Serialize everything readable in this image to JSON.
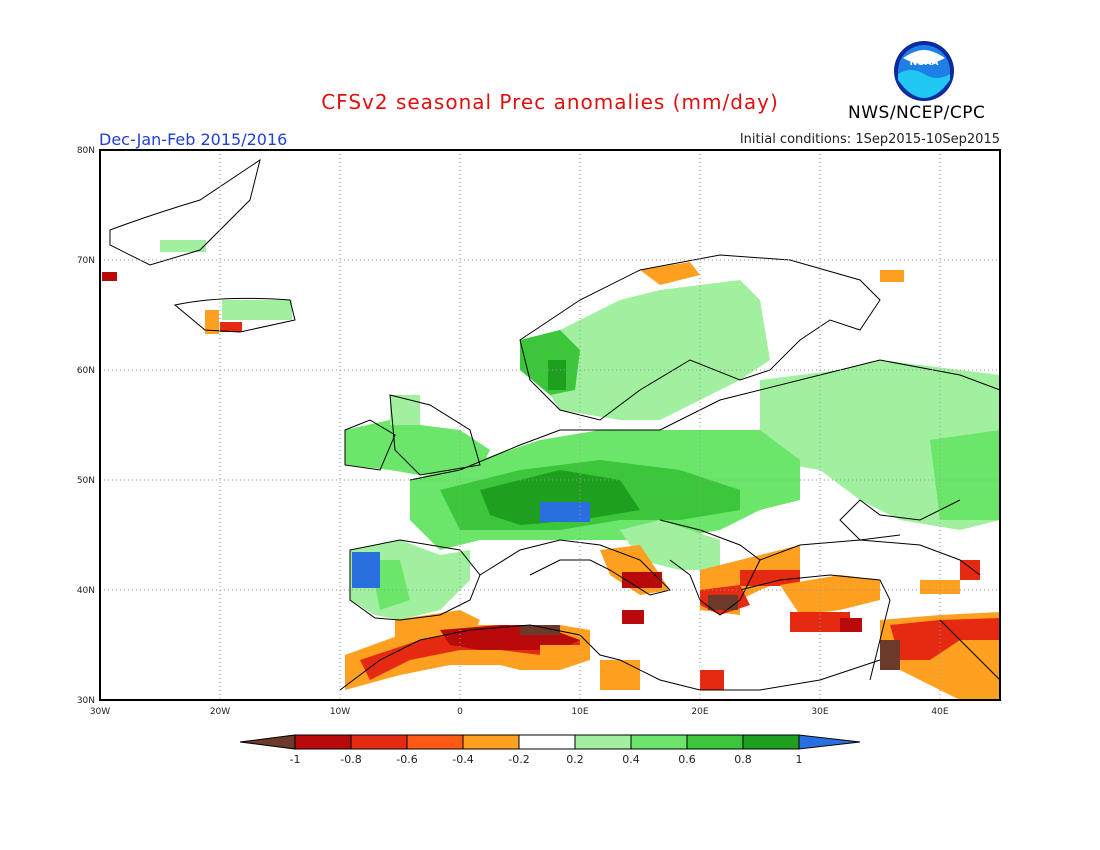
{
  "header": {
    "title": "CFSv2 seasonal Prec anomalies (mm/day)",
    "period": "Dec-Jan-Feb 2015/2016",
    "initial_conditions": "Initial conditions: 1Sep2015-10Sep2015",
    "agency": "NWS/NCEP/CPC",
    "logo_text": "NOAA"
  },
  "map": {
    "lat_ticks": [
      "80N",
      "70N",
      "60N",
      "50N",
      "40N",
      "30N"
    ],
    "lon_ticks": [
      "30W",
      "20W",
      "10W",
      "0",
      "10E",
      "20E",
      "30E",
      "40E"
    ]
  },
  "colorbar": {
    "labels": [
      "-1",
      "-0.8",
      "-0.6",
      "-0.4",
      "-0.2",
      "0.2",
      "0.4",
      "0.6",
      "0.8",
      "1"
    ],
    "colors": [
      "#6b3a2a",
      "#b80a0a",
      "#e62a12",
      "#ff5a14",
      "#ffa020",
      "#ffffff",
      "#a0f0a0",
      "#6be66b",
      "#3cc63c",
      "#1ea01e",
      "#2a6fe0"
    ]
  }
}
